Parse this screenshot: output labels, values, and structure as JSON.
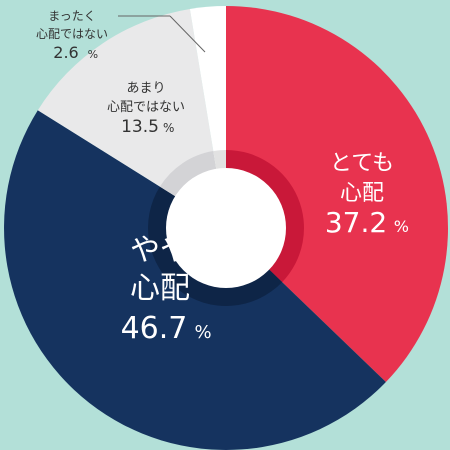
{
  "chart_data": {
    "type": "pie",
    "donut": true,
    "background": "#b3e0d8",
    "slices": [
      {
        "lines": [
          "とても",
          "心配"
        ],
        "value": 37.2,
        "value_text": "37.2",
        "unit": "%",
        "color": "#e8334f",
        "dark": "#c91839",
        "label_color": "#ffffff"
      },
      {
        "lines": [
          "やや",
          "心配"
        ],
        "value": 46.7,
        "value_text": "46.7",
        "unit": "%",
        "color": "#15335f",
        "dark": "#0e2547",
        "label_color": "#ffffff"
      },
      {
        "lines": [
          "あまり",
          "心配ではない"
        ],
        "value": 13.5,
        "value_text": "13.5",
        "unit": "%",
        "color": "#e9e9ea",
        "dark": "#d3d3d6",
        "label_color": "#333333"
      },
      {
        "lines": [
          "まったく",
          "心配ではない"
        ],
        "value": 2.6,
        "value_text": "2.6",
        "unit": "%",
        "color": "#ffffff",
        "dark": "#e2e2e2",
        "label_color": "#333333"
      }
    ]
  }
}
